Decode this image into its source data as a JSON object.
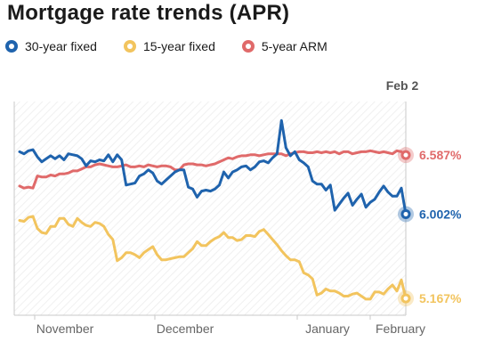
{
  "title": "Mortgage rate trends (APR)",
  "colors": {
    "30yr": "#1f63ad",
    "15yr": "#f2c45e",
    "arm": "#e06a6a",
    "axis": "#c9c9c9",
    "tick": "#666666"
  },
  "chart_data": {
    "type": "line",
    "title": "Mortgage rate trends (APR)",
    "xlabel": "",
    "ylabel": "",
    "x_ticks": [
      "November",
      "December",
      "January",
      "February"
    ],
    "cursor_label": "Feb 2",
    "grid": false,
    "legend_position": "top-left",
    "ylim": [
      5.0,
      7.4
    ],
    "series": [
      {
        "name": "30-year fixed",
        "color_key": "30yr",
        "end_label": "6.002%",
        "values": [
          6.62,
          6.6,
          6.63,
          6.64,
          6.57,
          6.52,
          6.55,
          6.58,
          6.55,
          6.58,
          6.54,
          6.6,
          6.59,
          6.58,
          6.55,
          6.48,
          6.53,
          6.52,
          6.54,
          6.53,
          6.59,
          6.52,
          6.59,
          6.54,
          6.29,
          6.3,
          6.31,
          6.38,
          6.4,
          6.44,
          6.41,
          6.33,
          6.3,
          6.34,
          6.38,
          6.42,
          6.44,
          6.44,
          6.27,
          6.25,
          6.17,
          6.23,
          6.24,
          6.23,
          6.25,
          6.29,
          6.42,
          6.36,
          6.42,
          6.44,
          6.47,
          6.48,
          6.44,
          6.47,
          6.52,
          6.53,
          6.51,
          6.56,
          6.6,
          6.93,
          6.66,
          6.58,
          6.62,
          6.54,
          6.51,
          6.47,
          6.33,
          6.3,
          6.3,
          6.24,
          6.29,
          6.04,
          6.1,
          6.16,
          6.21,
          6.09,
          6.15,
          6.2,
          6.07,
          6.12,
          6.15,
          6.22,
          6.28,
          6.22,
          6.18,
          6.18,
          6.26,
          6.002
        ]
      },
      {
        "name": "15-year fixed",
        "color_key": "15yr",
        "end_label": "5.167%",
        "values": [
          5.94,
          5.93,
          5.97,
          5.98,
          5.86,
          5.82,
          5.81,
          5.88,
          5.88,
          5.96,
          5.96,
          5.9,
          5.88,
          5.96,
          5.92,
          5.89,
          5.88,
          5.92,
          5.91,
          5.88,
          5.8,
          5.75,
          5.54,
          5.57,
          5.62,
          5.62,
          5.6,
          5.57,
          5.62,
          5.65,
          5.68,
          5.6,
          5.55,
          5.55,
          5.56,
          5.57,
          5.58,
          5.58,
          5.62,
          5.66,
          5.73,
          5.69,
          5.69,
          5.73,
          5.76,
          5.78,
          5.82,
          5.77,
          5.77,
          5.74,
          5.75,
          5.79,
          5.79,
          5.78,
          5.83,
          5.85,
          5.8,
          5.75,
          5.7,
          5.64,
          5.59,
          5.55,
          5.55,
          5.53,
          5.42,
          5.4,
          5.36,
          5.2,
          5.22,
          5.26,
          5.24,
          5.24,
          5.22,
          5.19,
          5.19,
          5.21,
          5.22,
          5.19,
          5.16,
          5.16,
          5.23,
          5.23,
          5.21,
          5.26,
          5.3,
          5.24,
          5.35,
          5.167
        ]
      },
      {
        "name": "5-year ARM",
        "color_key": "arm",
        "end_label": "6.587%",
        "values": [
          6.28,
          6.26,
          6.27,
          6.26,
          6.38,
          6.37,
          6.37,
          6.39,
          6.38,
          6.4,
          6.4,
          6.41,
          6.43,
          6.43,
          6.45,
          6.47,
          6.47,
          6.49,
          6.5,
          6.49,
          6.48,
          6.47,
          6.47,
          6.48,
          6.49,
          6.47,
          6.47,
          6.48,
          6.47,
          6.49,
          6.48,
          6.47,
          6.48,
          6.48,
          6.47,
          6.44,
          6.44,
          6.49,
          6.5,
          6.5,
          6.49,
          6.49,
          6.48,
          6.49,
          6.5,
          6.52,
          6.54,
          6.56,
          6.55,
          6.57,
          6.58,
          6.58,
          6.59,
          6.59,
          6.58,
          6.59,
          6.6,
          6.6,
          6.6,
          6.6,
          6.58,
          6.6,
          6.61,
          6.62,
          6.62,
          6.61,
          6.61,
          6.62,
          6.61,
          6.62,
          6.61,
          6.62,
          6.6,
          6.62,
          6.62,
          6.6,
          6.61,
          6.62,
          6.62,
          6.63,
          6.62,
          6.61,
          6.62,
          6.61,
          6.6,
          6.63,
          6.62,
          6.587
        ]
      }
    ]
  }
}
